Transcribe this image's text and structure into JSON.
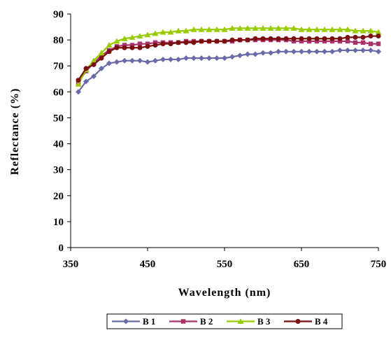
{
  "chart_data": {
    "type": "line",
    "xlabel": "Wavelength (nm)",
    "ylabel": "Reflectance (%)",
    "xlim": [
      350,
      750
    ],
    "ylim": [
      0,
      90
    ],
    "x_ticks": [
      "350",
      "450",
      "550",
      "650",
      "750"
    ],
    "y_ticks": [
      "0",
      "10",
      "20",
      "30",
      "40",
      "50",
      "60",
      "70",
      "80",
      "90"
    ],
    "x_tick_values": [
      350,
      450,
      550,
      650,
      750
    ],
    "y_tick_values": [
      0,
      10,
      20,
      30,
      40,
      50,
      60,
      70,
      80,
      90
    ],
    "grid": false,
    "legend_position": "bottom",
    "x": [
      360,
      370,
      380,
      390,
      400,
      410,
      420,
      430,
      440,
      450,
      460,
      470,
      480,
      490,
      500,
      510,
      520,
      530,
      540,
      550,
      560,
      570,
      580,
      590,
      600,
      610,
      620,
      630,
      640,
      650,
      660,
      670,
      680,
      690,
      700,
      710,
      720,
      730,
      740,
      750
    ],
    "series": [
      {
        "name": "B 1",
        "color": "#6a6aa8",
        "marker": "diamond",
        "values": [
          60,
          64,
          66,
          69,
          71,
          71.5,
          72,
          72,
          72,
          71.5,
          72,
          72.5,
          72.5,
          72.5,
          73,
          73,
          73,
          73,
          73,
          73,
          73.5,
          74,
          74.5,
          74.5,
          75,
          75,
          75.5,
          75.5,
          75.5,
          75.5,
          75.5,
          75.5,
          75.5,
          75.5,
          76,
          76,
          76,
          76,
          76,
          75.5
        ]
      },
      {
        "name": "B 2",
        "color": "#a8336a",
        "marker": "square",
        "values": [
          63.5,
          68,
          71,
          74,
          76,
          77.5,
          78,
          78,
          78.5,
          78.5,
          79,
          79,
          79,
          79,
          79.5,
          79.5,
          79.5,
          79.5,
          79.5,
          79.5,
          79.5,
          80,
          80,
          80,
          80,
          80,
          80,
          80,
          79.5,
          79.5,
          79.5,
          79.5,
          79.5,
          79.5,
          79.5,
          79.5,
          79,
          79,
          78.5,
          78.5
        ]
      },
      {
        "name": "B 3",
        "color": "#99cc00",
        "marker": "triangle",
        "values": [
          63,
          68.5,
          72,
          75,
          78,
          79.5,
          80.5,
          81,
          81.5,
          82,
          82.5,
          83,
          83,
          83.5,
          83.5,
          84,
          84,
          84,
          84,
          84,
          84.5,
          84.5,
          84.5,
          84.5,
          84.5,
          84.5,
          84.5,
          84.5,
          84.5,
          84,
          84,
          84,
          84,
          84,
          84,
          84,
          83.5,
          83.5,
          83.5,
          83
        ]
      },
      {
        "name": "B 4",
        "color": "#7a0f0f",
        "marker": "circle",
        "values": [
          64.5,
          69,
          70.5,
          73,
          75.5,
          77,
          77,
          77,
          77,
          77.5,
          78,
          78.5,
          78.5,
          79,
          79,
          79,
          79.5,
          79.5,
          79.5,
          79.5,
          80,
          80,
          80,
          80.5,
          80.5,
          80.5,
          80.5,
          80.5,
          80.5,
          80.5,
          80.5,
          80.5,
          80.5,
          80.5,
          80.5,
          81,
          81,
          81,
          81.5,
          81.5
        ]
      }
    ]
  }
}
